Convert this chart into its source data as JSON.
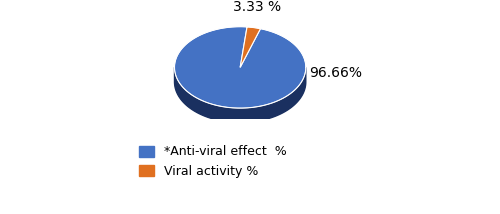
{
  "slices": [
    96.66,
    3.33
  ],
  "labels": [
    "96.66%",
    "3.33 %"
  ],
  "colors": [
    "#4472C4",
    "#E07020"
  ],
  "depth_colors": [
    "#1A3060",
    "#7A3010"
  ],
  "legend_labels": [
    "*Anti-viral effect  %",
    "Viral activity %"
  ],
  "legend_colors": [
    "#4472C4",
    "#E07020"
  ],
  "start_angle": 84,
  "label_fontsize": 10,
  "legend_fontsize": 9,
  "figsize": [
    5.0,
    2.14
  ],
  "dpi": 100,
  "r": 1.0,
  "yscale": 0.62,
  "depth": 0.22
}
